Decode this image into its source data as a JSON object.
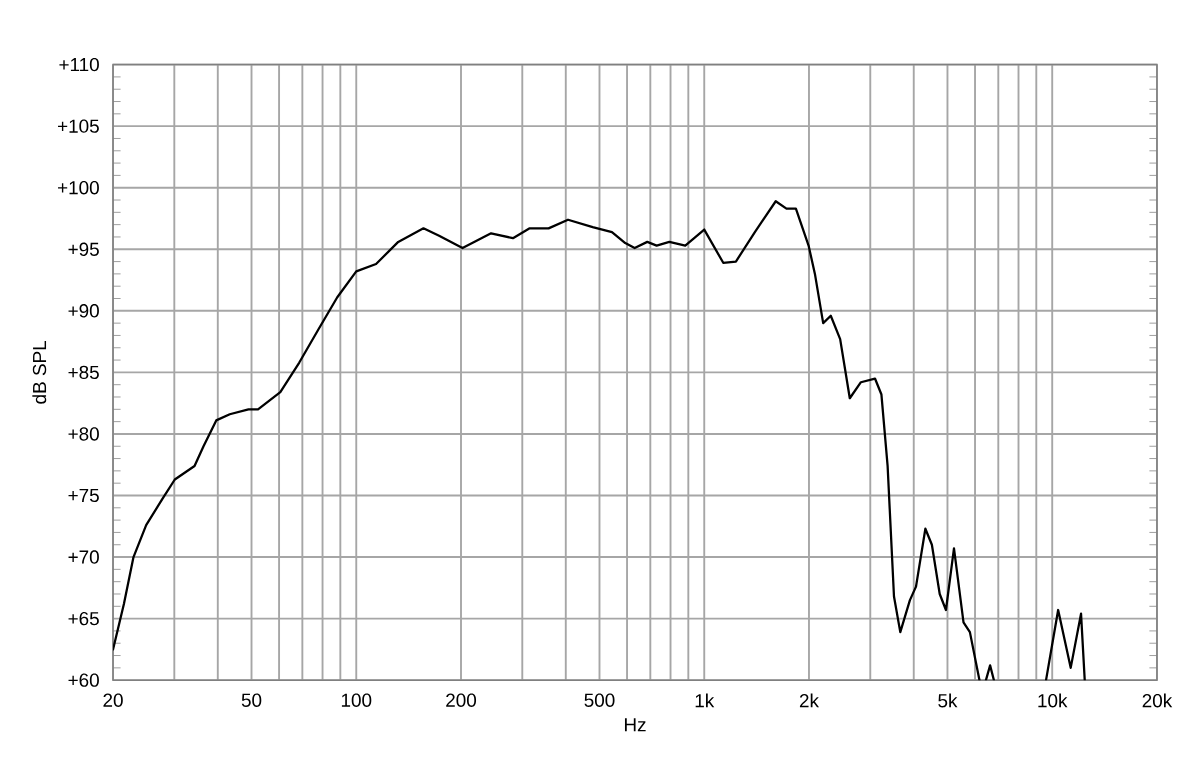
{
  "chart_data": {
    "type": "line",
    "xlabel": "Hz",
    "ylabel": "dB SPL",
    "log": "x",
    "grid": true,
    "color": "#000000",
    "xlim": [
      20,
      20000
    ],
    "ylim": [
      60,
      110
    ],
    "xticks": [
      20,
      {
        "value": 30,
        "label": null
      },
      {
        "value": 40,
        "label": null
      },
      50,
      {
        "value": 60,
        "label": null
      },
      {
        "value": 70,
        "label": null
      },
      {
        "value": 80,
        "label": null
      },
      {
        "value": 90,
        "label": null
      },
      100,
      200,
      {
        "value": 300,
        "label": null
      },
      {
        "value": 400,
        "label": null
      },
      500,
      {
        "value": 600,
        "label": null
      },
      {
        "value": 700,
        "label": null
      },
      {
        "value": 800,
        "label": null
      },
      {
        "value": 900,
        "label": null
      },
      {
        "value": 1000,
        "label": "1k"
      },
      {
        "value": 2000,
        "label": "2k"
      },
      {
        "value": 3000,
        "label": null
      },
      {
        "value": 4000,
        "label": null
      },
      {
        "value": 5000,
        "label": "5k"
      },
      {
        "value": 6000,
        "label": null
      },
      {
        "value": 7000,
        "label": null
      },
      {
        "value": 8000,
        "label": null
      },
      {
        "value": 9000,
        "label": null
      },
      {
        "value": 10000,
        "label": "10k"
      },
      {
        "value": 20000,
        "label": "20k"
      }
    ],
    "yticks": [
      {
        "value": 60,
        "label": "+60"
      },
      {
        "value": 65,
        "label": "+65"
      },
      {
        "value": 70,
        "label": "+70"
      },
      {
        "value": 75,
        "label": "+75"
      },
      {
        "value": 80,
        "label": "+80"
      },
      {
        "value": 85,
        "label": "+85"
      },
      {
        "value": 90,
        "label": "+90"
      },
      {
        "value": 95,
        "label": "+95"
      },
      {
        "value": 100,
        "label": "+100"
      },
      {
        "value": 105,
        "label": "+105"
      },
      {
        "value": 110,
        "label": "+110"
      }
    ],
    "x": [
      20,
      21.5,
      22.9,
      24.9,
      27.7,
      30.1,
      34.3,
      36.4,
      39.6,
      43.3,
      49,
      52.2,
      60.5,
      68.6,
      77.9,
      88.2,
      100,
      114,
      132,
      156,
      173,
      202,
      244,
      282,
      315,
      357,
      406,
      478,
      543,
      593,
      631,
      686,
      730,
      794,
      882,
      1000,
      1134,
      1233,
      1398,
      1605,
      1723,
      1834,
      1995,
      2080,
      2197,
      2310,
      2458,
      2620,
      2820,
      3095,
      3230,
      3365,
      3510,
      3660,
      3900,
      4060,
      4320,
      4510,
      4750,
      4950,
      5220,
      5560,
      5800,
      6180,
      6300,
      6450,
      6630,
      6800,
      8000,
      9600,
      10400,
      11300,
      12100,
      12400
    ],
    "values": [
      62.5,
      66.2,
      70.0,
      72.6,
      74.7,
      76.3,
      77.4,
      79.0,
      81.1,
      81.6,
      82.0,
      82.0,
      83.4,
      85.8,
      88.5,
      91.1,
      93.2,
      93.8,
      95.6,
      96.7,
      96.1,
      95.1,
      96.3,
      95.9,
      96.7,
      96.7,
      97.4,
      96.8,
      96.4,
      95.5,
      95.1,
      95.6,
      95.3,
      95.6,
      95.3,
      96.6,
      93.9,
      94.0,
      96.4,
      98.9,
      98.3,
      98.3,
      95.3,
      93.0,
      89.0,
      89.6,
      87.7,
      82.9,
      84.2,
      84.5,
      83.2,
      77.4,
      66.8,
      63.9,
      66.5,
      67.6,
      72.3,
      71.0,
      67.0,
      65.7,
      70.7,
      64.7,
      63.9,
      60,
      null,
      60,
      61.2,
      60,
      null,
      60,
      65.7,
      61,
      65.4,
      60
    ]
  }
}
